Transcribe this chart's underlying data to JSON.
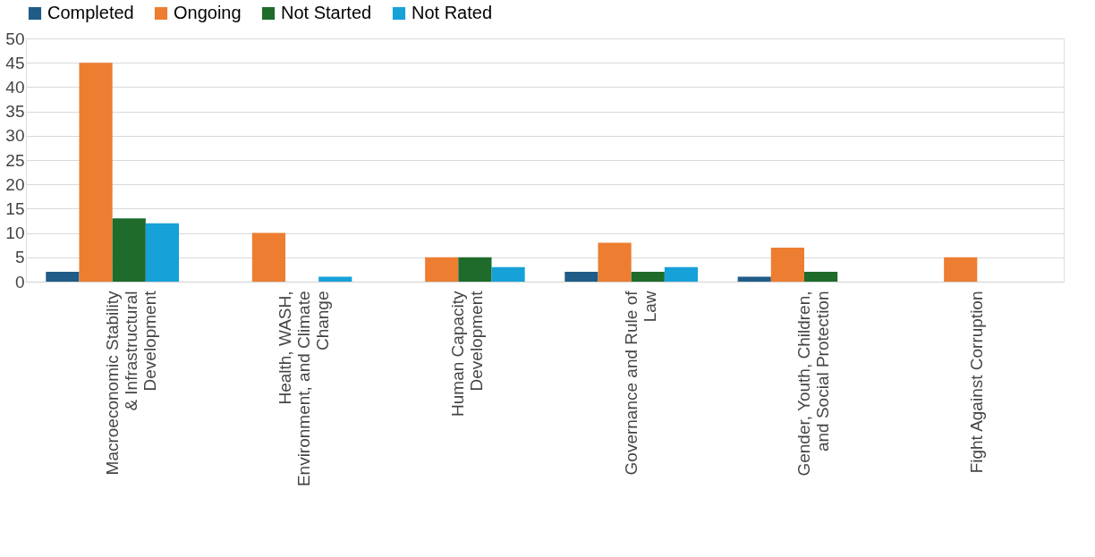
{
  "chart_data": {
    "type": "bar",
    "categories": [
      "Macroeconomic Stability & Infrastructural Development",
      "Health, WASH, Environment, and Climate Change",
      "Human Capacity Development",
      "Governance and Rule of Law",
      "Gender, Youth, Children, and Social Protection",
      "Fight Against Corruption"
    ],
    "series": [
      {
        "name": "Completed",
        "color": "#1f5c87",
        "values": [
          2,
          null,
          null,
          2,
          1,
          null
        ]
      },
      {
        "name": "Ongoing",
        "color": "#ed7d31",
        "values": [
          45,
          10,
          5,
          8,
          7,
          5
        ]
      },
      {
        "name": "Not Started",
        "color": "#1e6b2b",
        "values": [
          13,
          null,
          5,
          2,
          2,
          null
        ]
      },
      {
        "name": "Not Rated",
        "color": "#17a1d9",
        "values": [
          12,
          1,
          3,
          3,
          null,
          null
        ]
      }
    ],
    "ylim": [
      0,
      50
    ],
    "yticks": [
      0,
      5,
      10,
      15,
      20,
      25,
      30,
      35,
      40,
      45,
      50
    ],
    "grid": "y",
    "legend": "top"
  }
}
